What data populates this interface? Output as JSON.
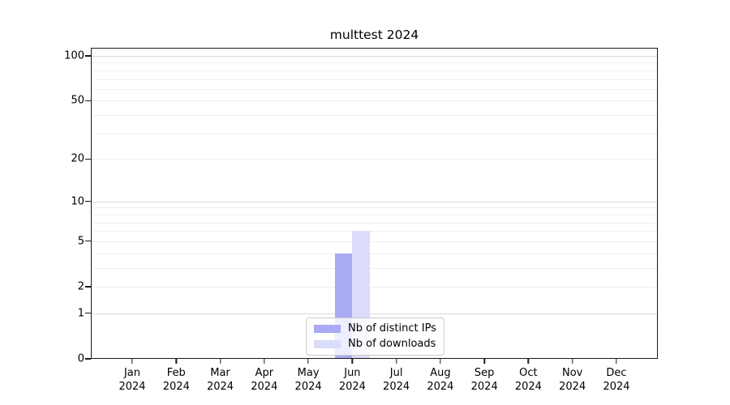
{
  "title": "multtest 2024",
  "legend": {
    "items": [
      {
        "label": "Nb of distinct IPs",
        "color": "#a9aaf3"
      },
      {
        "label": "Nb of downloads",
        "color": "#dbdcf9"
      }
    ]
  },
  "y_axis_tick_labels": [
    "0",
    "1",
    "2",
    "5",
    "10",
    "20",
    "50",
    "100"
  ],
  "x_axis_tick_labels": [
    "Jan 2024",
    "Feb 2024",
    "Mar 2024",
    "Apr 2024",
    "May 2024",
    "Jun 2024",
    "Jul 2024",
    "Aug 2024",
    "Sep 2024",
    "Oct 2024",
    "Nov 2024",
    "Dec 2024"
  ],
  "chart_data": {
    "type": "bar",
    "title": "multtest 2024",
    "categories": [
      "Jan 2024",
      "Feb 2024",
      "Mar 2024",
      "Apr 2024",
      "May 2024",
      "Jun 2024",
      "Jul 2024",
      "Aug 2024",
      "Sep 2024",
      "Oct 2024",
      "Nov 2024",
      "Dec 2024"
    ],
    "series": [
      {
        "name": "Nb of distinct IPs",
        "color": "#a9aaf3",
        "values": [
          0,
          0,
          0,
          0,
          0,
          4,
          0,
          0,
          0,
          0,
          0,
          0
        ]
      },
      {
        "name": "Nb of downloads",
        "color": "#dbdcf9",
        "values": [
          0,
          0,
          0,
          0,
          0,
          6,
          0,
          0,
          0,
          0,
          0,
          0
        ]
      }
    ],
    "xlabel": "",
    "ylabel": "",
    "y_scale": "log1p",
    "ylim": [
      0,
      100
    ],
    "yticks": [
      0,
      1,
      2,
      5,
      10,
      20,
      50,
      100
    ],
    "grid": {
      "major": [
        1,
        10,
        100
      ],
      "minor": [
        2,
        3,
        4,
        5,
        6,
        7,
        8,
        9,
        20,
        30,
        40,
        50,
        60,
        70,
        80,
        90
      ]
    },
    "legend_position": "lower center",
    "grid_on": true
  }
}
